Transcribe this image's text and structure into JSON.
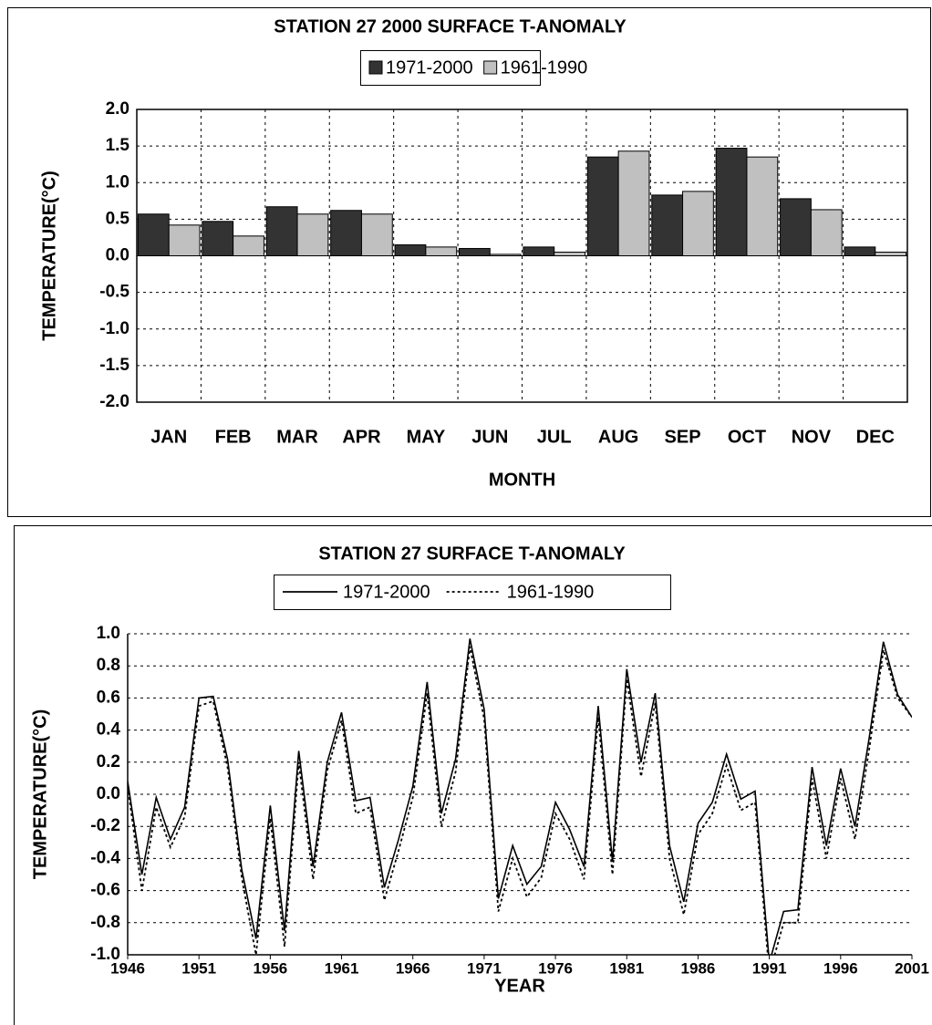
{
  "chart_data": [
    {
      "type": "bar",
      "title": "STATION 27 2000 SURFACE T-ANOMALY",
      "x_label": "MONTH",
      "y_label": "TEMPERATURE(°C)",
      "categories": [
        "JAN",
        "FEB",
        "MAR",
        "APR",
        "MAY",
        "JUN",
        "JUL",
        "AUG",
        "SEP",
        "OCT",
        "NOV",
        "DEC"
      ],
      "series": [
        {
          "name": "1971-2000",
          "color": "#333333",
          "values": [
            0.57,
            0.47,
            0.67,
            0.62,
            0.15,
            0.1,
            0.12,
            1.35,
            0.83,
            1.47,
            0.78,
            0.12
          ]
        },
        {
          "name": "1961-1990",
          "color": "#c0c0c0",
          "values": [
            0.42,
            0.27,
            0.57,
            0.57,
            0.12,
            0.02,
            0.05,
            1.43,
            0.88,
            1.35,
            0.63,
            0.05
          ]
        }
      ],
      "ylim": [
        -2,
        2
      ],
      "yticks": [
        {
          "value": 2,
          "label": "2.0"
        },
        1.5,
        {
          "value": 1,
          "label": "1.0"
        },
        0.5,
        {
          "value": 0,
          "label": "0.0"
        },
        -0.5,
        {
          "value": -1,
          "label": "-1.0"
        },
        -1.5,
        {
          "value": -2,
          "label": "-2.0"
        }
      ],
      "grid": true,
      "legend": "top"
    },
    {
      "type": "line",
      "title": "STATION 27 SURFACE T-ANOMALY",
      "x_label": "YEAR",
      "y_label": "TEMPERATURE(°C)",
      "x": [
        1946,
        1947,
        1948,
        1949,
        1950,
        1951,
        1952,
        1953,
        1954,
        1955,
        1956,
        1957,
        1958,
        1959,
        1960,
        1961,
        1962,
        1963,
        1964,
        1965,
        1966,
        1967,
        1968,
        1969,
        1970,
        1971,
        1972,
        1973,
        1974,
        1975,
        1976,
        1977,
        1978,
        1979,
        1980,
        1981,
        1982,
        1983,
        1984,
        1985,
        1986,
        1987,
        1988,
        1989,
        1990,
        1991,
        1992,
        1993,
        1994,
        1995,
        1996,
        1997,
        1998,
        1999,
        2000,
        2001
      ],
      "series": [
        {
          "name": "1971-2000",
          "color": "#000000",
          "line_style": "solid",
          "values": [
            0.08,
            -0.5,
            -0.02,
            -0.28,
            -0.08,
            0.6,
            0.61,
            0.22,
            -0.47,
            -0.9,
            -0.07,
            -0.85,
            0.27,
            -0.45,
            0.2,
            0.51,
            -0.04,
            -0.02,
            -0.58,
            -0.28,
            0.05,
            0.7,
            -0.12,
            0.22,
            0.97,
            0.53,
            -0.65,
            -0.32,
            -0.56,
            -0.45,
            -0.05,
            -0.22,
            -0.45,
            0.55,
            -0.42,
            0.78,
            0.2,
            0.63,
            -0.32,
            -0.67,
            -0.18,
            -0.05,
            0.25,
            -0.03,
            0.02,
            -1.05,
            -0.73,
            -0.72,
            0.17,
            -0.32,
            0.16,
            -0.2,
            0.35,
            0.95,
            0.62,
            0.48
          ]
        },
        {
          "name": "1961-1990",
          "color": "#000000",
          "line_style": "dotted",
          "values": [
            0.05,
            -0.6,
            -0.08,
            -0.33,
            -0.14,
            0.55,
            0.58,
            0.17,
            -0.52,
            -1.0,
            -0.15,
            -0.95,
            0.2,
            -0.53,
            0.15,
            0.46,
            -0.12,
            -0.08,
            -0.66,
            -0.35,
            -0.02,
            0.63,
            -0.2,
            0.14,
            0.92,
            0.47,
            -0.73,
            -0.4,
            -0.64,
            -0.52,
            -0.12,
            -0.28,
            -0.53,
            0.48,
            -0.5,
            0.72,
            0.11,
            0.57,
            -0.4,
            -0.75,
            -0.25,
            -0.12,
            0.18,
            -0.1,
            -0.05,
            -1.12,
            -0.8,
            -0.8,
            0.1,
            -0.4,
            0.1,
            -0.28,
            0.28,
            0.9,
            0.6,
            0.48
          ]
        }
      ],
      "xlim": [
        1946,
        2001
      ],
      "xticks": [
        1946,
        1951,
        1956,
        1961,
        1966,
        1971,
        1976,
        1981,
        1986,
        1991,
        1996,
        2001
      ],
      "ylim": [
        -1,
        1
      ],
      "yticks": [
        {
          "value": 1,
          "label": "1.0"
        },
        0.8,
        0.6,
        0.4,
        0.2,
        {
          "value": 0,
          "label": "0.0"
        },
        -0.2,
        -0.4,
        -0.6,
        -0.8,
        {
          "value": -1,
          "label": "-1.0"
        }
      ],
      "grid": true,
      "legend": "top"
    }
  ]
}
